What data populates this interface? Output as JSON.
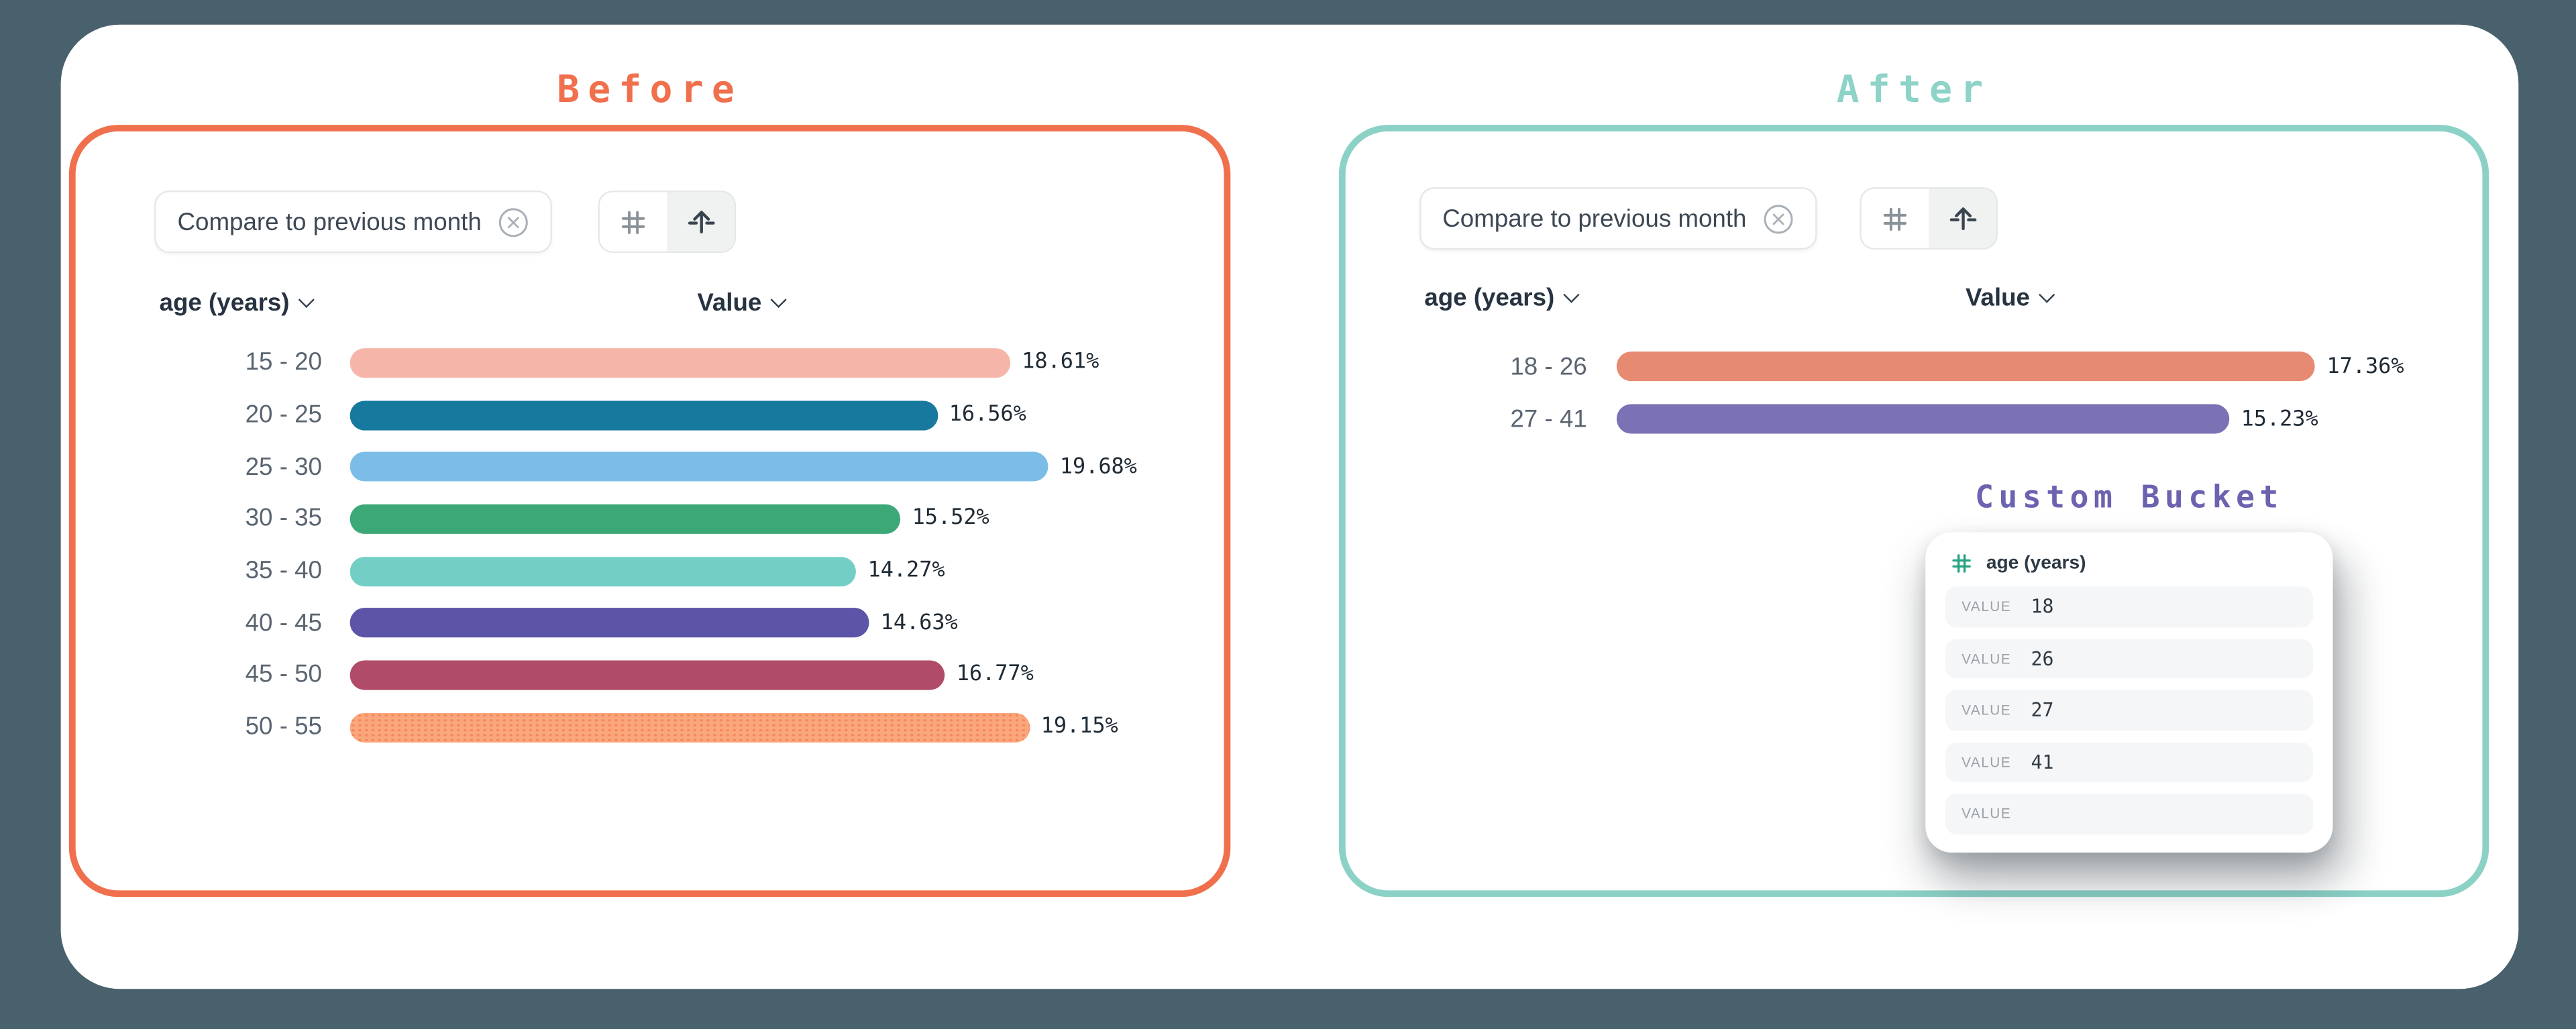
{
  "page": {
    "background_color": "#48616C",
    "surface_color": "#FFFFFF"
  },
  "before": {
    "title": "Before",
    "accent_color": "#F0704E",
    "chip_label": "Compare to previous month",
    "toolbar_icons": [
      "hash",
      "bucket-arrow-up"
    ],
    "header": {
      "dimension": "age (years)",
      "measure": "Value"
    },
    "rows": [
      {
        "label": "15 - 20",
        "value": 18.61,
        "display": "18.61%",
        "color": "#F6B5A9"
      },
      {
        "label": "20 - 25",
        "value": 16.56,
        "display": "16.56%",
        "color": "#17799E"
      },
      {
        "label": "25 - 30",
        "value": 19.68,
        "display": "19.68%",
        "color": "#7CBDE8"
      },
      {
        "label": "30 - 35",
        "value": 15.52,
        "display": "15.52%",
        "color": "#3CA877"
      },
      {
        "label": "35 - 40",
        "value": 14.27,
        "display": "14.27%",
        "color": "#73CFC5"
      },
      {
        "label": "40 - 45",
        "value": 14.63,
        "display": "14.63%",
        "color": "#5B54A7"
      },
      {
        "label": "45 - 50",
        "value": 16.77,
        "display": "16.77%",
        "color": "#B04C68"
      },
      {
        "label": "50 - 55",
        "value": 19.15,
        "display": "19.15%",
        "color": "#FBA77D",
        "pattern": "dotted"
      }
    ]
  },
  "after": {
    "title": "After",
    "accent_color": "#8ED3C7",
    "chip_label": "Compare to previous month",
    "toolbar_icons": [
      "hash",
      "bucket-arrow-up"
    ],
    "header": {
      "dimension": "age (years)",
      "measure": "Value"
    },
    "rows": [
      {
        "label": "18 - 26",
        "value": 17.36,
        "display": "17.36%",
        "color": "#E78A72"
      },
      {
        "label": "27 - 41",
        "value": 15.23,
        "display": "15.23%",
        "color": "#7B72B5"
      }
    ]
  },
  "custom_bucket": {
    "title": "Custom Bucket",
    "accent_color": "#6B63AF",
    "field_label": "age (years)",
    "field_icon": "hash",
    "value_label": "VALUE",
    "values": [
      "18",
      "26",
      "27",
      "41",
      ""
    ]
  },
  "chart_data": [
    {
      "type": "bar",
      "orientation": "horizontal",
      "title": "Before",
      "xlabel": "Value",
      "ylabel": "age (years)",
      "unit": "%",
      "categories": [
        "15 - 20",
        "20 - 25",
        "25 - 30",
        "30 - 35",
        "35 - 40",
        "40 - 45",
        "45 - 50",
        "50 - 55"
      ],
      "values": [
        18.61,
        16.56,
        19.68,
        15.52,
        14.27,
        14.63,
        16.77,
        19.15
      ],
      "data_labels": true,
      "grid": false,
      "legend": false
    },
    {
      "type": "bar",
      "orientation": "horizontal",
      "title": "After",
      "xlabel": "Value",
      "ylabel": "age (years)",
      "unit": "%",
      "categories": [
        "18 - 26",
        "27 - 41"
      ],
      "values": [
        17.36,
        15.23
      ],
      "data_labels": true,
      "grid": false,
      "legend": false
    }
  ]
}
